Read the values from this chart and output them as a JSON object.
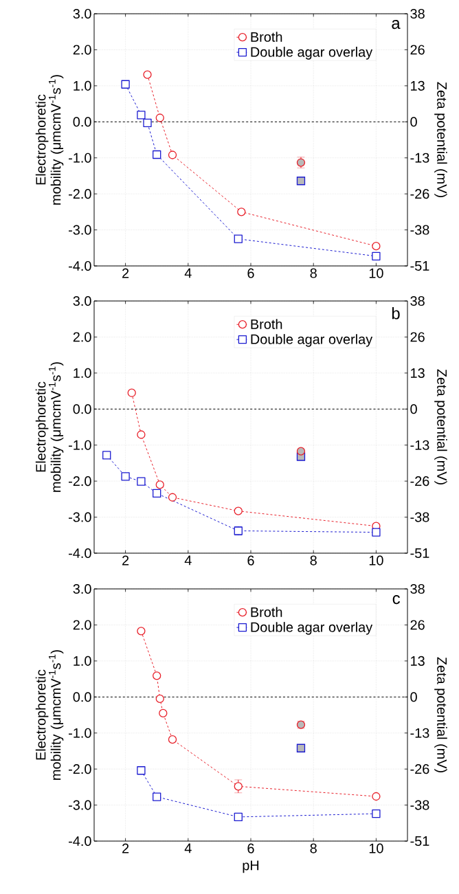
{
  "chart_data": [
    {
      "type": "line",
      "ylabel": "Electrophoretic mobility (μmcmV$^{-1}$s$^{-1}$)",
      "y2label": "Zeta potential (mV)",
      "annotations": [
        "a"
      ],
      "xlim": [
        1,
        11
      ],
      "xticks": [
        2,
        4,
        6,
        8,
        10
      ],
      "ylim": [
        -4,
        3
      ],
      "yticks": [
        {
          "value": -4,
          "label": "-4.0"
        },
        {
          "value": -3,
          "label": "-3.0"
        },
        {
          "value": -2,
          "label": "-2.0"
        },
        {
          "value": -1,
          "label": "-1.0"
        },
        {
          "value": 0,
          "label": "0.0"
        },
        {
          "value": 1,
          "label": "1.0"
        },
        {
          "value": 2,
          "label": "2.0"
        },
        {
          "value": 3,
          "label": "3.0"
        }
      ],
      "y2lim": [
        -51.2,
        38.4
      ],
      "y2ticks": [
        {
          "value": -51.2,
          "label": "-51"
        },
        {
          "value": -38.4,
          "label": "-38"
        },
        {
          "value": -25.6,
          "label": "-26"
        },
        {
          "value": -12.8,
          "label": "-13"
        },
        {
          "value": 0,
          "label": "0"
        },
        {
          "value": 12.8,
          "label": "13"
        },
        {
          "value": 25.6,
          "label": "26"
        },
        {
          "value": 38.4,
          "label": "38"
        }
      ],
      "grid": true,
      "legend": "top right",
      "ref_lines": [
        {
          "axis": "y",
          "value": 0,
          "color": "#000000",
          "line_style": "dashed"
        }
      ],
      "series": [
        {
          "name": "Broth",
          "color": "#e8202a",
          "marker": "circle",
          "line_style": "dashed",
          "x": [
            2.7,
            3.1,
            3.5,
            5.7,
            10
          ],
          "values": [
            1.31,
            0.11,
            -0.92,
            -2.5,
            -3.45
          ]
        },
        {
          "name": "Double agar overlay",
          "color": "#1a1ad0",
          "marker": "square",
          "line_style": "dashed",
          "x": [
            2.0,
            2.5,
            2.7,
            3.0,
            5.6,
            10
          ],
          "values": [
            1.04,
            0.19,
            -0.03,
            -0.91,
            -3.25,
            -3.73
          ]
        },
        {
          "type": "scatter",
          "color": "#e8202a",
          "marker": "circle",
          "x": [
            7.6
          ],
          "values": [
            -1.13
          ],
          "errors": [
            0.15
          ]
        },
        {
          "type": "scatter",
          "color": "#1a1ad0",
          "marker": "square",
          "x": [
            7.6
          ],
          "values": [
            -1.64
          ]
        }
      ]
    },
    {
      "type": "line",
      "ylabel": "Electrophoretic mobility (μmcmV$^{-1}$s$^{-1}$)",
      "y2label": "Zeta potential (mV)",
      "annotations": [
        "b"
      ],
      "xlim": [
        1,
        11
      ],
      "xticks": [
        2,
        4,
        6,
        8,
        10
      ],
      "ylim": [
        -4,
        3
      ],
      "yticks": [
        {
          "value": -4,
          "label": "-4.0"
        },
        {
          "value": -3,
          "label": "-3.0"
        },
        {
          "value": -2,
          "label": "-2.0"
        },
        {
          "value": -1,
          "label": "-1.0"
        },
        {
          "value": 0,
          "label": "0.0"
        },
        {
          "value": 1,
          "label": "1.0"
        },
        {
          "value": 2,
          "label": "2.0"
        },
        {
          "value": 3,
          "label": "3.0"
        }
      ],
      "y2lim": [
        -51.2,
        38.4
      ],
      "y2ticks": [
        {
          "value": -51.2,
          "label": "-51"
        },
        {
          "value": -38.4,
          "label": "-38"
        },
        {
          "value": -25.6,
          "label": "-26"
        },
        {
          "value": -12.8,
          "label": "-13"
        },
        {
          "value": 0,
          "label": "0"
        },
        {
          "value": 12.8,
          "label": "13"
        },
        {
          "value": 25.6,
          "label": "26"
        },
        {
          "value": 38.4,
          "label": "38"
        }
      ],
      "grid": true,
      "legend": "top right",
      "ref_lines": [
        {
          "axis": "y",
          "value": 0,
          "color": "#000000",
          "line_style": "dashed"
        }
      ],
      "series": [
        {
          "name": "Broth",
          "color": "#e8202a",
          "marker": "circle",
          "line_style": "dashed",
          "x": [
            2.2,
            2.5,
            3.1,
            3.5,
            5.6,
            10
          ],
          "values": [
            0.45,
            -0.71,
            -2.1,
            -2.45,
            -2.83,
            -3.25
          ]
        },
        {
          "name": "Double agar overlay",
          "color": "#1a1ad0",
          "marker": "square",
          "line_style": "dashed",
          "x": [
            1.4,
            2.0,
            2.5,
            3.0,
            5.6,
            10
          ],
          "values": [
            -1.28,
            -1.87,
            -2.01,
            -2.34,
            -3.38,
            -3.42
          ],
          "errors": [
            null,
            null,
            null,
            null,
            0.12,
            null
          ]
        },
        {
          "type": "scatter",
          "color": "#1a1ad0",
          "marker": "square",
          "x": [
            7.6
          ],
          "values": [
            -1.32
          ]
        },
        {
          "type": "scatter",
          "color": "#e8202a",
          "marker": "circle",
          "x": [
            7.6
          ],
          "values": [
            -1.17
          ]
        }
      ]
    },
    {
      "type": "line",
      "xlabel": "pH",
      "ylabel": "Electrophoretic mobility (μmcmV$^{-1}$s$^{-1}$)",
      "y2label": "Zeta potential (mV)",
      "annotations": [
        "c"
      ],
      "xlim": [
        1,
        11
      ],
      "xticks": [
        2,
        4,
        6,
        8,
        10
      ],
      "ylim": [
        -4,
        3
      ],
      "yticks": [
        {
          "value": -4,
          "label": "-4.0"
        },
        {
          "value": -3,
          "label": "-3.0"
        },
        {
          "value": -2,
          "label": "-2.0"
        },
        {
          "value": -1,
          "label": "-1.0"
        },
        {
          "value": 0,
          "label": "0.0"
        },
        {
          "value": 1,
          "label": "1.0"
        },
        {
          "value": 2,
          "label": "2.0"
        },
        {
          "value": 3,
          "label": "3.0"
        }
      ],
      "y2lim": [
        -51.2,
        38.4
      ],
      "y2ticks": [
        {
          "value": -51.2,
          "label": "-51"
        },
        {
          "value": -38.4,
          "label": "-38"
        },
        {
          "value": -25.6,
          "label": "-26"
        },
        {
          "value": -12.8,
          "label": "-13"
        },
        {
          "value": 0,
          "label": "0"
        },
        {
          "value": 12.8,
          "label": "13"
        },
        {
          "value": 25.6,
          "label": "26"
        },
        {
          "value": 38.4,
          "label": "38"
        }
      ],
      "grid": true,
      "legend": "top right",
      "ref_lines": [
        {
          "axis": "y",
          "value": 0,
          "color": "#000000",
          "line_style": "dashed"
        }
      ],
      "series": [
        {
          "name": "Broth",
          "color": "#e8202a",
          "marker": "circle",
          "line_style": "dashed",
          "x": [
            2.5,
            3.0,
            3.1,
            3.2,
            3.5,
            5.6,
            10
          ],
          "values": [
            1.83,
            0.59,
            -0.05,
            -0.45,
            -1.18,
            -2.48,
            -2.76
          ],
          "errors": [
            null,
            null,
            null,
            null,
            null,
            0.18,
            null
          ]
        },
        {
          "name": "Double agar overlay",
          "color": "#1a1ad0",
          "marker": "square",
          "line_style": "dashed",
          "x": [
            2.5,
            3.0,
            5.6,
            10
          ],
          "values": [
            -2.04,
            -2.77,
            -3.33,
            -3.24
          ]
        },
        {
          "type": "scatter",
          "color": "#e8202a",
          "marker": "circle",
          "x": [
            7.6
          ],
          "values": [
            -0.77
          ],
          "errors": [
            0.1
          ]
        },
        {
          "type": "scatter",
          "color": "#1a1ad0",
          "marker": "square",
          "x": [
            7.6
          ],
          "values": [
            -1.42
          ]
        }
      ]
    }
  ]
}
